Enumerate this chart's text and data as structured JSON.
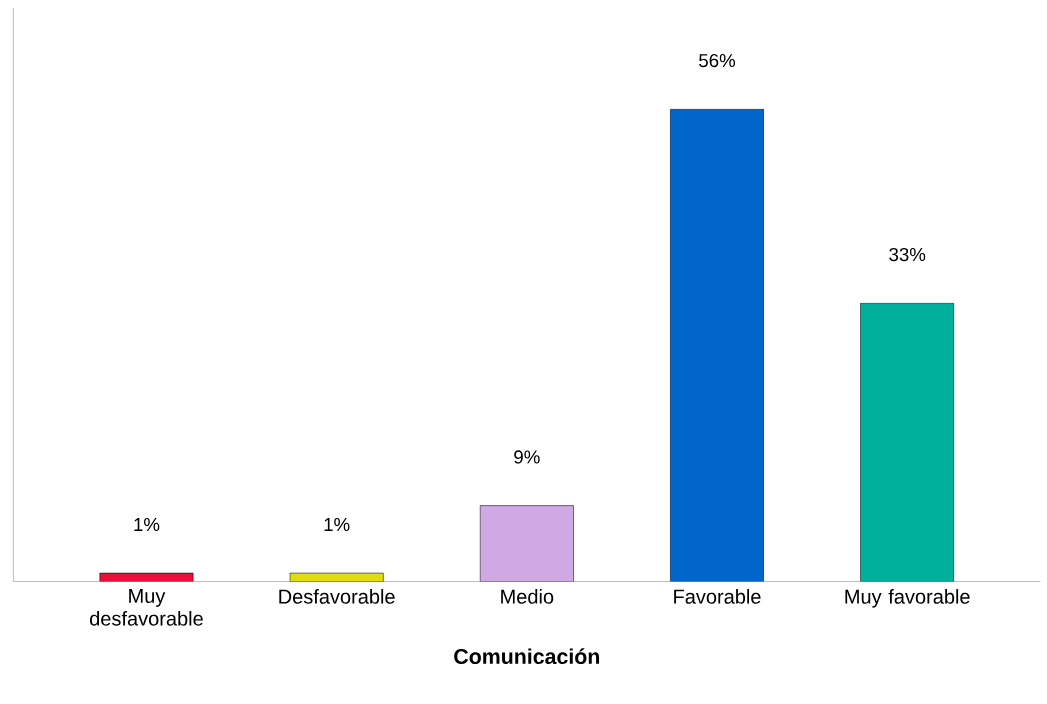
{
  "chart_data": {
    "type": "bar",
    "xlabel": "Comunicación",
    "categories": [
      "Muy desfavorable",
      "Desfavorable",
      "Medio",
      "Favorable",
      "Muy favorable"
    ],
    "values": [
      1,
      1,
      9,
      56,
      33
    ],
    "colors": [
      "#e8103a",
      "#e0dc10",
      "#d0a8e4",
      "#0066cc",
      "#00b09c"
    ],
    "value_labels": [
      "1%",
      "1%",
      "9%",
      "56%",
      "33%"
    ],
    "ylim": [
      0,
      68
    ],
    "tick_labels": "x"
  }
}
